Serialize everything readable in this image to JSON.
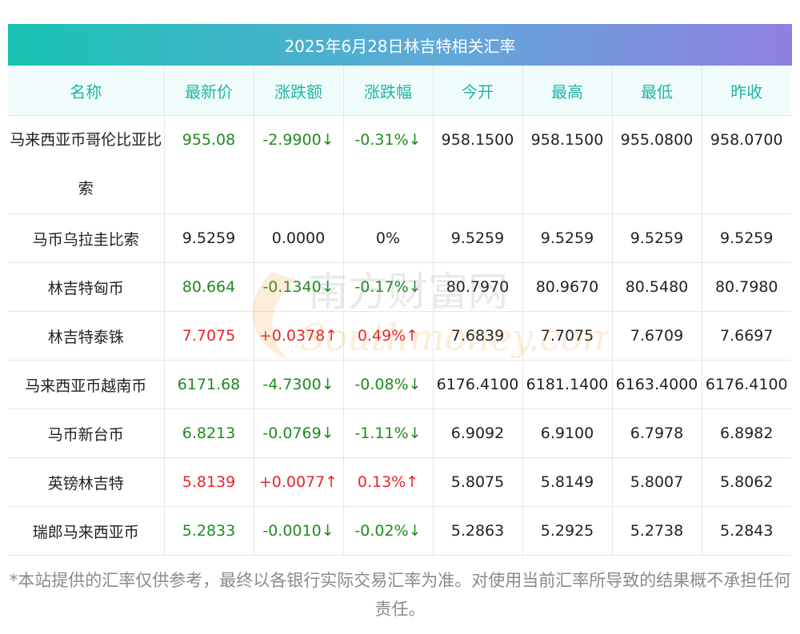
{
  "title": "2025年6月28日林吉特相关汇率",
  "headers": [
    "名称",
    "最新价",
    "涨跌额",
    "涨跌幅",
    "今开",
    "最高",
    "最低",
    "昨收"
  ],
  "rows": [
    {
      "name": "马来西亚币哥伦比亚比索",
      "latest": "955.08",
      "change": "-2.9900↓",
      "pct": "-0.31%↓",
      "open": "958.1500",
      "high": "958.1500",
      "low": "955.0800",
      "prev": "958.0700",
      "trend": "down"
    },
    {
      "name": "马币乌拉圭比索",
      "latest": "9.5259",
      "change": "0.0000",
      "pct": "0%",
      "open": "9.5259",
      "high": "9.5259",
      "low": "9.5259",
      "prev": "9.5259",
      "trend": "flat"
    },
    {
      "name": "林吉特匈币",
      "latest": "80.664",
      "change": "-0.1340↓",
      "pct": "-0.17%↓",
      "open": "80.7970",
      "high": "80.9670",
      "low": "80.5480",
      "prev": "80.7980",
      "trend": "down"
    },
    {
      "name": "林吉特泰铢",
      "latest": "7.7075",
      "change": "+0.0378↑",
      "pct": "0.49%↑",
      "open": "7.6839",
      "high": "7.7075",
      "low": "7.6709",
      "prev": "7.6697",
      "trend": "up"
    },
    {
      "name": "马来西亚币越南币",
      "latest": "6171.68",
      "change": "-4.7300↓",
      "pct": "-0.08%↓",
      "open": "6176.4100",
      "high": "6181.1400",
      "low": "6163.4000",
      "prev": "6176.4100",
      "trend": "down"
    },
    {
      "name": "马币新台币",
      "latest": "6.8213",
      "change": "-0.0769↓",
      "pct": "-1.11%↓",
      "open": "6.9092",
      "high": "6.9100",
      "low": "6.7978",
      "prev": "6.8982",
      "trend": "down"
    },
    {
      "name": "英镑林吉特",
      "latest": "5.8139",
      "change": "+0.0077↑",
      "pct": "0.13%↑",
      "open": "5.8075",
      "high": "5.8149",
      "low": "5.8007",
      "prev": "5.8062",
      "trend": "up"
    },
    {
      "name": "瑞郎马来西亚币",
      "latest": "5.2833",
      "change": "-0.0010↓",
      "pct": "-0.02%↓",
      "open": "5.2863",
      "high": "5.2925",
      "low": "5.2738",
      "prev": "5.2843",
      "trend": "down"
    }
  ],
  "watermark": {
    "cn": "南方财富网",
    "en": "Southmoney.com"
  },
  "footnote": "*本站提供的汇率仅供参考，最终以各银行实际交易汇率为准。对使用当前汇率所导致的结果概不承担任何责任。",
  "colors": {
    "up": "#e8242a",
    "down": "#1e8b1e",
    "header_text": "#22b3a6"
  }
}
